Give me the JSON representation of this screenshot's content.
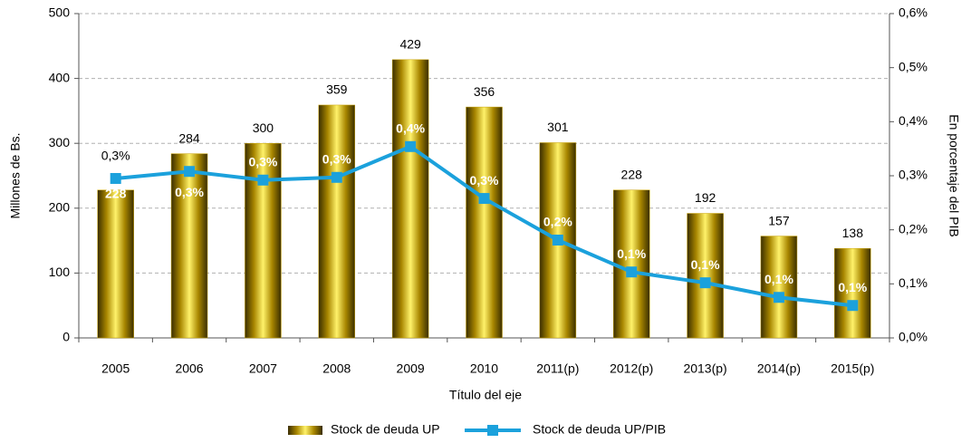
{
  "chart_data": {
    "type": "combo",
    "categories": [
      "2005",
      "2006",
      "2007",
      "2008",
      "2009",
      "2010",
      "2011(p)",
      "2012(p)",
      "2013(p)",
      "2014(p)",
      "2015(p)"
    ],
    "series": [
      {
        "name": "Stock de deuda UP",
        "type": "bar",
        "color": "#c9a200",
        "values": [
          228,
          284,
          300,
          359,
          429,
          356,
          301,
          228,
          192,
          157,
          138
        ]
      },
      {
        "name": "Stock de deuda UP/PIB",
        "type": "line",
        "axis": "y2",
        "color": "#1ba1dc",
        "values": [
          0.295,
          0.308,
          0.292,
          0.297,
          0.354,
          0.258,
          0.181,
          0.122,
          0.102,
          0.075,
          0.06
        ],
        "value_labels": [
          "0,3%",
          "0,3%",
          "0,3%",
          "0,3%",
          "0,4%",
          "0,3%",
          "0,2%",
          "0,1%",
          "0,1%",
          "0,1%",
          "0,1%"
        ]
      }
    ],
    "xlabel": "Título del eje",
    "ylabel": "Millones de Bs.",
    "y2label": "En porcentaje del PIB",
    "ylim": [
      0,
      500
    ],
    "yticks": [
      0,
      100,
      200,
      300,
      400,
      500
    ],
    "y2lim": [
      0,
      0.6
    ],
    "y2ticks": [
      {
        "value": 0,
        "label": "0,0%"
      },
      {
        "value": 0.1,
        "label": "0,1%"
      },
      {
        "value": 0.2,
        "label": "0,2%"
      },
      {
        "value": 0.3,
        "label": "0,3%"
      },
      {
        "value": 0.4,
        "label": "0,4%"
      },
      {
        "value": 0.5,
        "label": "0,5%"
      },
      {
        "value": 0.6,
        "label": "0,6%"
      }
    ],
    "grid": true,
    "legend": "bottom"
  }
}
